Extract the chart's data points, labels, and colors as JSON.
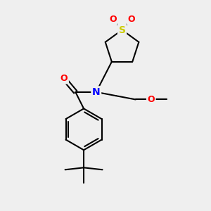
{
  "bg_color": "#efefef",
  "bond_color": "#000000",
  "S_color": "#cccc00",
  "N_color": "#0000ff",
  "O_color": "#ff0000",
  "line_width": 1.5,
  "font_size": 9,
  "fig_size": [
    3.0,
    3.0
  ],
  "dpi": 100,
  "xlim": [
    0,
    10
  ],
  "ylim": [
    0,
    10
  ]
}
